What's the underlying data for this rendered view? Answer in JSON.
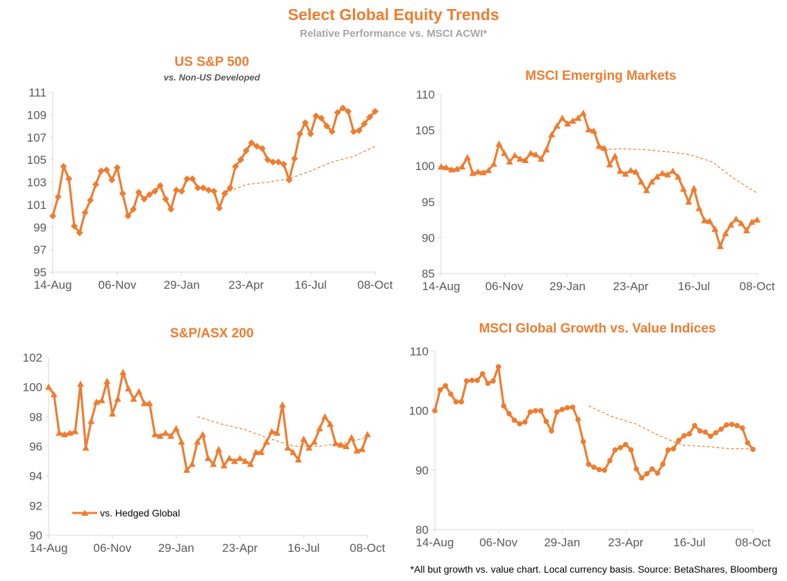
{
  "title": "Select Global Equity Trends",
  "subtitle": "Relative Performance vs. MSCI ACWI*",
  "footer": "*All but growth vs. value chart.  Local currency basis.  Source: BetaShares, Bloomberg",
  "colors": {
    "accent": "#ED7D31",
    "axis": "#D9D9D9",
    "subtitle_grey": "#A6A6A6"
  },
  "panels": [
    {
      "title": "US S&P 500",
      "subtitle": "vs. Non-US Developed"
    },
    {
      "title": "MSCI Emerging Markets"
    },
    {
      "title": "S&P/ASX 200",
      "legend": "vs. Hedged Global"
    },
    {
      "title": "MSCI Global Growth vs. Value Indices"
    }
  ],
  "chart_data": [
    {
      "type": "line",
      "title": "US S&P 500",
      "subtitle": "vs. Non-US Developed",
      "x_ticks": [
        "14-Aug",
        "06-Nov",
        "29-Jan",
        "23-Apr",
        "16-Jul",
        "08-Oct"
      ],
      "ylim": [
        95,
        111
      ],
      "y_ticks": [
        95,
        97,
        99,
        101,
        103,
        105,
        107,
        109,
        111
      ],
      "marker": "diamond",
      "series": [
        {
          "values": [
            100.0,
            101.7,
            104.4,
            103.3,
            99.1,
            98.5,
            100.3,
            101.4,
            102.8,
            104.0,
            104.1,
            103.2,
            104.3,
            102.0,
            100.0,
            100.6,
            102.1,
            101.5,
            101.9,
            102.2,
            102.7,
            101.5,
            100.6,
            102.3,
            102.2,
            103.3,
            103.3,
            102.5,
            102.5,
            102.3,
            102.2,
            100.7,
            102.0,
            102.5,
            104.4,
            105.0,
            105.8,
            106.5,
            106.2,
            106.0,
            105.0,
            104.8,
            104.8,
            104.6,
            103.2,
            105.1,
            107.3,
            108.3,
            107.3,
            108.9,
            108.7,
            108.0,
            107.5,
            109.2,
            109.6,
            109.3,
            107.5,
            107.6,
            108.2,
            108.8,
            109.3
          ]
        },
        {
          "style": "dashed",
          "start_index": 32,
          "values": [
            102.0,
            102.8,
            103.0,
            103.3,
            104.0,
            104.8,
            105.3,
            106.2
          ]
        }
      ]
    },
    {
      "type": "line",
      "title": "MSCI Emerging Markets",
      "x_ticks": [
        "14-Aug",
        "06-Nov",
        "29-Jan",
        "23-Apr",
        "16-Jul",
        "08-Oct"
      ],
      "ylim": [
        85,
        110
      ],
      "y_ticks": [
        85,
        90,
        95,
        100,
        105,
        110
      ],
      "marker": "triangle",
      "series": [
        {
          "values": [
            99.9,
            99.8,
            99.5,
            99.6,
            99.9,
            101.2,
            99.0,
            99.2,
            99.1,
            99.4,
            100.3,
            103.1,
            101.8,
            100.6,
            101.5,
            101.0,
            100.8,
            101.8,
            101.6,
            101.0,
            102.3,
            104.4,
            105.6,
            106.7,
            105.9,
            106.3,
            106.7,
            107.4,
            105.1,
            104.9,
            102.8,
            102.5,
            100.2,
            101.4,
            99.3,
            98.9,
            99.4,
            99.2,
            97.8,
            96.6,
            97.8,
            98.5,
            99.0,
            98.8,
            99.3,
            98.5,
            96.8,
            95.0,
            96.9,
            94.1,
            92.4,
            92.3,
            91.2,
            88.8,
            90.6,
            91.8,
            92.6,
            92.0,
            91.0,
            92.2,
            92.5
          ]
        },
        {
          "style": "dashed",
          "start_index": 30,
          "values": [
            102.3,
            102.4,
            102.3,
            102.0,
            101.6,
            100.6,
            98.2,
            96.2
          ]
        }
      ]
    },
    {
      "type": "line",
      "title": "S&P/ASX 200",
      "x_ticks": [
        "14-Aug",
        "06-Nov",
        "29-Jan",
        "23-Apr",
        "16-Jul",
        "08-Oct"
      ],
      "ylim": [
        90,
        102
      ],
      "y_ticks": [
        90,
        92,
        94,
        96,
        98,
        100,
        102
      ],
      "marker": "triangle",
      "series": [
        {
          "name": "vs. Hedged Global",
          "values": [
            100.0,
            99.5,
            96.9,
            96.8,
            96.9,
            97.0,
            100.2,
            95.9,
            97.7,
            99.0,
            99.1,
            100.4,
            98.2,
            99.2,
            101.0,
            99.9,
            99.2,
            99.7,
            98.9,
            98.9,
            96.8,
            96.7,
            96.9,
            96.7,
            97.2,
            96.3,
            94.4,
            94.8,
            96.3,
            96.8,
            95.2,
            94.8,
            95.8,
            94.7,
            95.2,
            95.0,
            95.2,
            95.0,
            94.8,
            95.6,
            95.6,
            96.3,
            97.0,
            96.9,
            98.8,
            95.9,
            95.6,
            95.1,
            96.5,
            95.9,
            96.3,
            97.2,
            98.0,
            97.5,
            96.2,
            96.1,
            96.0,
            96.6,
            95.7,
            95.8,
            96.8
          ]
        },
        {
          "style": "dashed",
          "start_index": 28,
          "values": [
            98.0,
            97.5,
            97.1,
            96.5,
            96.0,
            96.0,
            96.2,
            96.6
          ]
        }
      ]
    },
    {
      "type": "line",
      "title": "MSCI Global Growth vs. Value Indices",
      "x_ticks": [
        "14-Aug",
        "06-Nov",
        "29-Jan",
        "23-Apr",
        "16-Jul",
        "08-Oct"
      ],
      "ylim": [
        80,
        110
      ],
      "y_ticks": [
        80,
        90,
        100,
        110
      ],
      "marker": "circle",
      "series": [
        {
          "values": [
            100.0,
            103.5,
            104.2,
            102.8,
            101.5,
            101.5,
            105.0,
            105.1,
            105.1,
            106.2,
            104.6,
            105.0,
            107.4,
            100.8,
            99.5,
            98.4,
            97.8,
            98.1,
            99.8,
            100.0,
            100.0,
            98.2,
            96.6,
            99.8,
            100.2,
            100.5,
            100.6,
            98.5,
            94.8,
            91.0,
            90.5,
            90.1,
            90.0,
            91.6,
            93.4,
            93.8,
            94.3,
            93.4,
            90.2,
            88.7,
            89.4,
            90.2,
            89.5,
            91.0,
            93.4,
            93.6,
            95.0,
            95.8,
            96.1,
            97.5,
            96.6,
            96.4,
            95.7,
            96.3,
            96.9,
            97.6,
            97.7,
            97.5,
            97.1,
            94.6,
            93.5
          ]
        },
        {
          "style": "dashed",
          "start_index": 29,
          "values": [
            100.8,
            99.0,
            97.8,
            95.8,
            94.2,
            94.0,
            93.6,
            93.6
          ]
        }
      ]
    }
  ]
}
